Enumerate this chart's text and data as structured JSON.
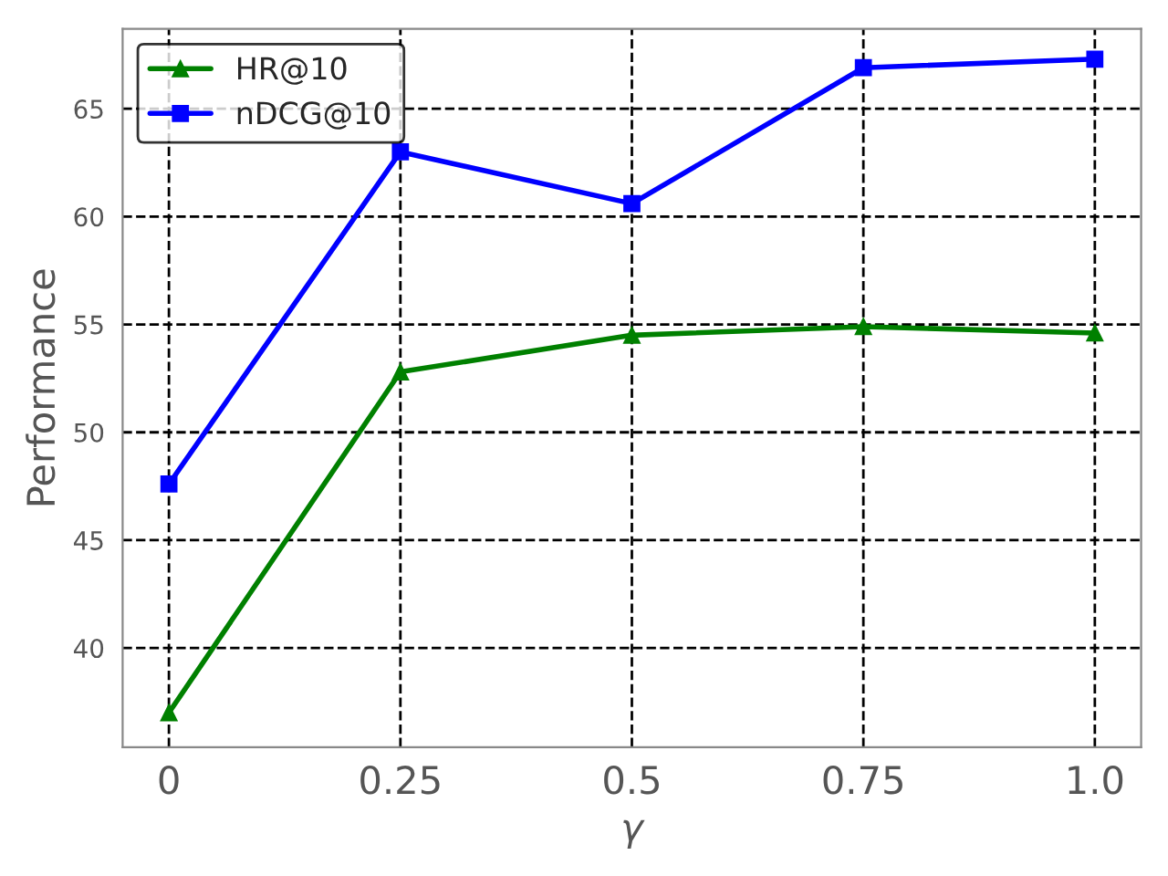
{
  "chart_data": {
    "type": "line",
    "xlabel": "γ",
    "ylabel": "Performance",
    "x": [
      0,
      0.25,
      0.5,
      0.75,
      1.0
    ],
    "series": [
      {
        "name": "HR@10",
        "color": "#008000",
        "marker": "triangle",
        "values": [
          37.0,
          52.8,
          54.5,
          54.9,
          54.6
        ]
      },
      {
        "name": "nDCG@10",
        "color": "#0000ff",
        "marker": "square",
        "values": [
          47.6,
          63.0,
          60.6,
          66.9,
          67.3
        ]
      }
    ],
    "xlim": [
      -0.05,
      1.05
    ],
    "xticks": [
      0,
      0.25,
      0.5,
      0.75,
      {
        "value": 1.0,
        "label": "1.0"
      }
    ],
    "ylim": [
      35.4,
      68.7
    ],
    "yticks": [
      40,
      45,
      50,
      55,
      60,
      65
    ],
    "grid": true,
    "legend": "top left",
    "line_style": "solid"
  }
}
